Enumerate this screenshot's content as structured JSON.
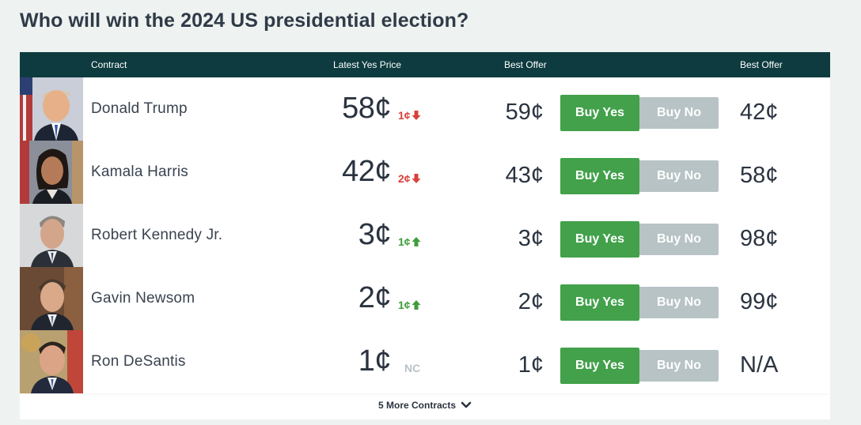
{
  "page": {
    "title": "Who will win the 2024 US presidential election?"
  },
  "table": {
    "headers": {
      "contract": "Contract",
      "latest_yes_price": "Latest Yes Price",
      "best_offer_yes": "Best Offer",
      "best_offer_no": "Best Offer"
    },
    "buy_yes_label": "Buy Yes",
    "buy_no_label": "Buy No",
    "rows": [
      {
        "name": "Donald Trump",
        "price": "58¢",
        "change": "1¢",
        "direction": "down",
        "best_offer_yes": "59¢",
        "best_offer_no": "42¢"
      },
      {
        "name": "Kamala Harris",
        "price": "42¢",
        "change": "2¢",
        "direction": "down",
        "best_offer_yes": "43¢",
        "best_offer_no": "58¢"
      },
      {
        "name": "Robert Kennedy Jr.",
        "price": "3¢",
        "change": "1¢",
        "direction": "up",
        "best_offer_yes": "3¢",
        "best_offer_no": "98¢"
      },
      {
        "name": "Gavin Newsom",
        "price": "2¢",
        "change": "1¢",
        "direction": "up",
        "best_offer_yes": "2¢",
        "best_offer_no": "99¢"
      },
      {
        "name": "Ron DeSantis",
        "price": "1¢",
        "change": "NC",
        "direction": "none",
        "best_offer_yes": "1¢",
        "best_offer_no": "N/A"
      }
    ],
    "more_contracts_label": "5 More Contracts"
  },
  "colors": {
    "header_bg": "#0e3b3f",
    "buy_yes": "#42a14a",
    "buy_no": "#b7c3c5",
    "change_down": "#d9413b",
    "change_up": "#3f9e3b",
    "change_none": "#b8c3c7"
  },
  "icons": {
    "down": "arrow-down-icon",
    "up": "arrow-up-icon",
    "more": "chevron-down-icon"
  }
}
